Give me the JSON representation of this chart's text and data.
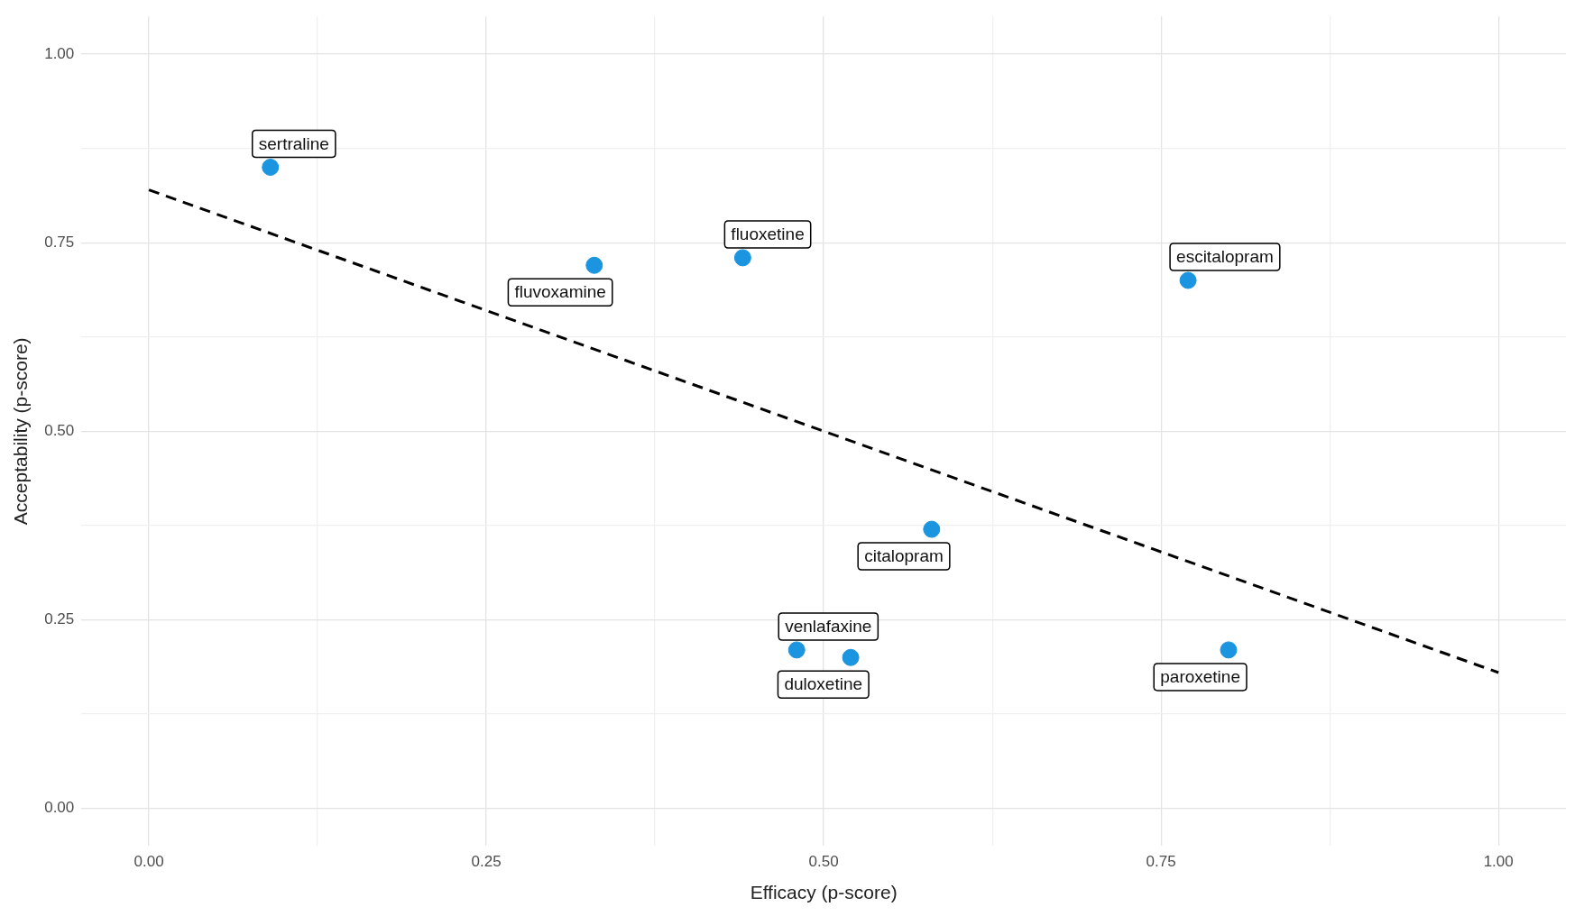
{
  "chart_data": {
    "type": "scatter",
    "xlabel": "Efficacy (p-score)",
    "ylabel": "Acceptability (p-score)",
    "xlim": [
      -0.05,
      1.05
    ],
    "ylim": [
      -0.05,
      1.05
    ],
    "xticks": [
      {
        "value": 0,
        "label": "0.00"
      },
      {
        "value": 0.125,
        "label": null
      },
      {
        "value": 0.25,
        "label": "0.25"
      },
      {
        "value": 0.375,
        "label": null
      },
      {
        "value": 0.5,
        "label": "0.50"
      },
      {
        "value": 0.625,
        "label": null
      },
      {
        "value": 0.75,
        "label": "0.75"
      },
      {
        "value": 0.875,
        "label": null
      },
      {
        "value": 1,
        "label": "1.00"
      }
    ],
    "yticks": [
      {
        "value": 0,
        "label": "0.00"
      },
      {
        "value": 0.125,
        "label": null
      },
      {
        "value": 0.25,
        "label": "0.25"
      },
      {
        "value": 0.375,
        "label": null
      },
      {
        "value": 0.5,
        "label": "0.50"
      },
      {
        "value": 0.625,
        "label": null
      },
      {
        "value": 0.75,
        "label": "0.75"
      },
      {
        "value": 0.875,
        "label": null
      },
      {
        "value": 1,
        "label": "1.00"
      }
    ],
    "grid": true,
    "marker": "circle",
    "series": [
      {
        "color": "#1b95e0",
        "x": [
          0.09,
          0.33,
          0.44,
          0.58,
          0.77,
          0.52,
          0.48,
          0.8
        ],
        "values": [
          0.85,
          0.72,
          0.73,
          0.37,
          0.7,
          0.2,
          0.21,
          0.21
        ]
      },
      {
        "type": "line",
        "color": "#000000",
        "x": [
          0,
          1
        ],
        "values": [
          0.82,
          0.18
        ],
        "marker": "none",
        "line_style": "dashed"
      }
    ],
    "annotations": [
      {
        "text": "sertraline",
        "x": 0.09,
        "y": 0.85
      },
      {
        "text": "fluvoxamine",
        "x": 0.33,
        "y": 0.72
      },
      {
        "text": "fluoxetine",
        "x": 0.44,
        "y": 0.73
      },
      {
        "text": "citalopram",
        "x": 0.58,
        "y": 0.37
      },
      {
        "text": "escitalopram",
        "x": 0.77,
        "y": 0.7
      },
      {
        "text": "duloxetine",
        "x": 0.52,
        "y": 0.2
      },
      {
        "text": "venlafaxine",
        "x": 0.48,
        "y": 0.21
      },
      {
        "text": "paroxetine",
        "x": 0.8,
        "y": 0.21
      }
    ]
  }
}
